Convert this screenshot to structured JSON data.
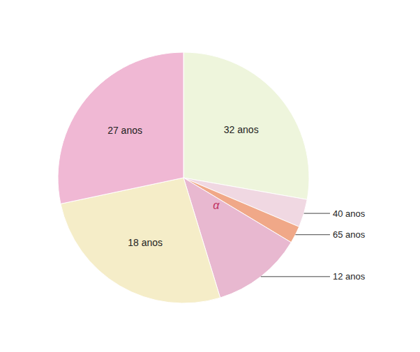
{
  "chart_data": {
    "type": "pie",
    "categories": [
      "32 anos",
      "40 anos",
      "65 anos",
      "12 anos",
      "18 anos",
      "27 anos"
    ],
    "values": [
      100,
      13,
      8,
      42,
      95,
      102
    ],
    "colors": [
      "#eef5dc",
      "#f0d8e2",
      "#f0a888",
      "#e8b8d0",
      "#f5edc8",
      "#f0b8d4"
    ],
    "annotations": [
      "α"
    ]
  }
}
